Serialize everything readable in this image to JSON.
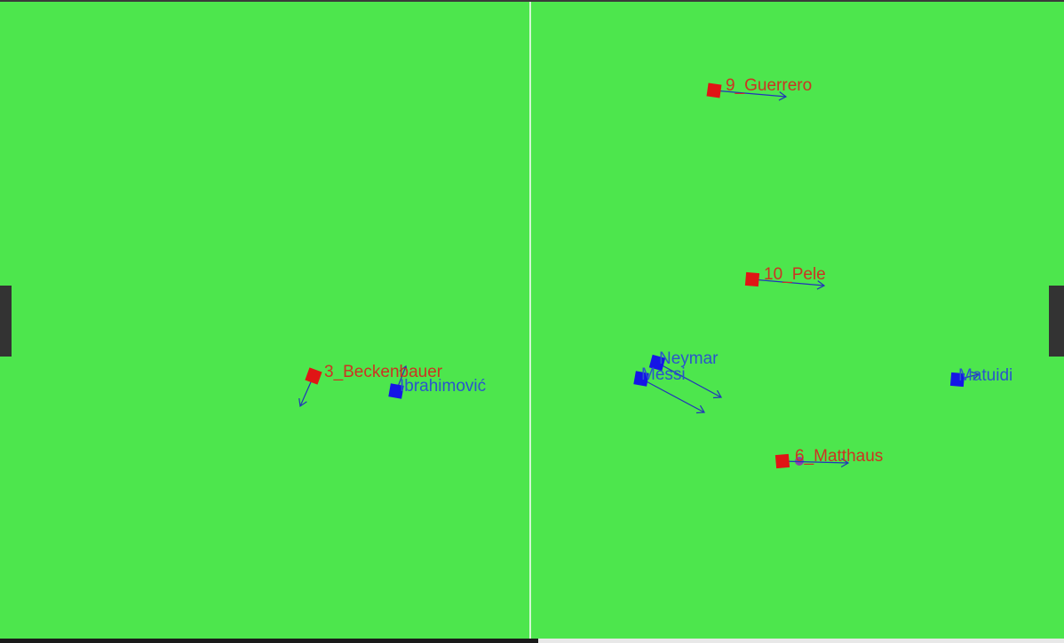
{
  "colors": {
    "field": "#4de64d",
    "red_team": "#e01515",
    "blue_team": "#1515e6",
    "red_label": "#cc3322",
    "blue_label": "#2a55cc",
    "arrow": "#2233bb",
    "ball": "#8844aa",
    "goal": "#333333",
    "line": "#ffffff"
  },
  "players": [
    {
      "id": "p1",
      "name": "9_Guerrero",
      "team": "red"
    },
    {
      "id": "p2",
      "name": "10_Pele",
      "team": "red"
    },
    {
      "id": "p3",
      "name": "3_Beckenbauer",
      "team": "red"
    },
    {
      "id": "p4",
      "name": "6_Matthaus",
      "team": "red"
    },
    {
      "id": "p5",
      "name": "Ibrahimović",
      "team": "blue"
    },
    {
      "id": "p6",
      "name": "Neymar",
      "team": "blue"
    },
    {
      "id": "p7",
      "name": "Messi",
      "team": "blue"
    },
    {
      "id": "p8",
      "name": "Matuidi",
      "team": "blue"
    }
  ]
}
